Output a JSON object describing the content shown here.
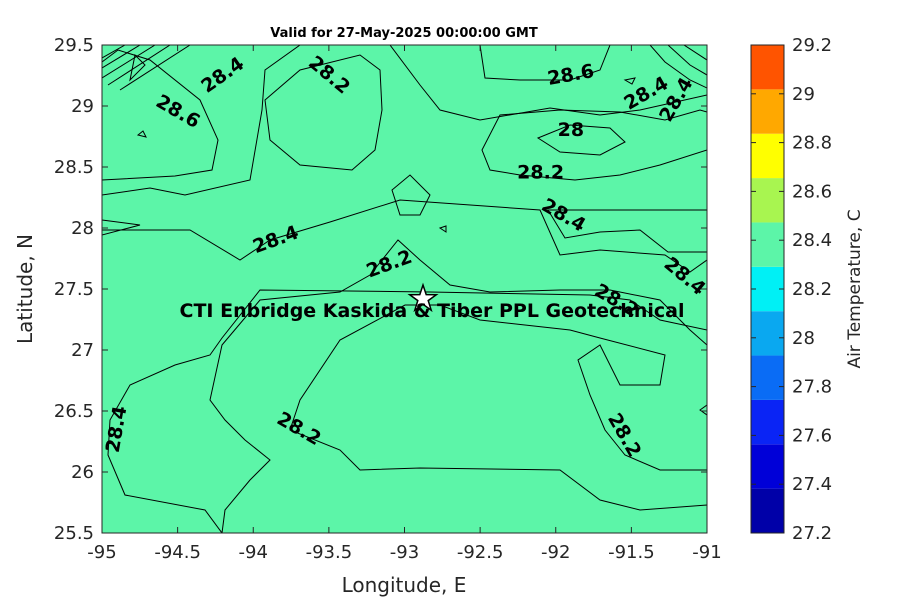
{
  "title": "Valid for 27-May-2025 00:00:00 GMT",
  "site_label": "CTI Enbridge  Kaskida & Tiber PPL Geotechnical",
  "colors": {
    "t27_2": "#0000a8",
    "t27_4": "#0000d8",
    "t27_6": "#0a24f5",
    "t27_8": "#0a6cf5",
    "t28_0": "#0aa8f0",
    "t28_2": "#00f0f5",
    "t28_4": "#5cf5a8",
    "t28_6": "#a8f550",
    "t28_8": "#ffff00",
    "t29_0": "#ffa800",
    "t29_2": "#ff5400",
    "t29_4": "#ff0000"
  },
  "chart_data": {
    "type": "contour_map",
    "title": "Valid for 27-May-2025 00:00:00 GMT",
    "xlabel": "Longitude, E",
    "ylabel": "Latitude, N",
    "xlim": [
      -95,
      -91
    ],
    "ylim": [
      25.5,
      29.5
    ],
    "x_ticks": [
      "-95",
      "-94.5",
      "-94",
      "-93.5",
      "-93",
      "-92.5",
      "-92",
      "-91.5",
      "-91"
    ],
    "y_ticks": [
      "29.5",
      "29",
      "28.5",
      "28",
      "27.5",
      "27",
      "26.5",
      "26",
      "25.5"
    ],
    "colorbar": {
      "label": "Air Temperature, C",
      "levels": [
        27.2,
        27.4,
        27.6,
        27.8,
        28.0,
        28.2,
        28.4,
        28.6,
        28.8,
        29.0,
        29.2
      ],
      "tick_labels": [
        "29.2",
        "29",
        "28.8",
        "28.6",
        "28.4",
        "28.2",
        "28",
        "27.8",
        "27.6",
        "27.4",
        "27.2"
      ]
    },
    "contour_labels": [
      {
        "text": "28.4",
        "lon": -94.2,
        "lat": 29.25
      },
      {
        "text": "28.2",
        "lon": -93.5,
        "lat": 29.25
      },
      {
        "text": "28.6",
        "lon": -94.5,
        "lat": 28.95
      },
      {
        "text": "28.6",
        "lon": -91.9,
        "lat": 29.25
      },
      {
        "text": "28.4",
        "lon": -91.4,
        "lat": 29.1
      },
      {
        "text": "28.4",
        "lon": -91.2,
        "lat": 29.05
      },
      {
        "text": "28",
        "lon": -91.9,
        "lat": 28.8
      },
      {
        "text": "28.2",
        "lon": -92.1,
        "lat": 28.45
      },
      {
        "text": "28.4",
        "lon": -91.95,
        "lat": 28.1
      },
      {
        "text": "28.4",
        "lon": -93.85,
        "lat": 27.9
      },
      {
        "text": "28.2",
        "lon": -93.1,
        "lat": 27.7
      },
      {
        "text": "28.4",
        "lon": -91.15,
        "lat": 27.6
      },
      {
        "text": "28.2",
        "lon": -91.6,
        "lat": 27.4
      },
      {
        "text": "28.4",
        "lon": -94.9,
        "lat": 26.35
      },
      {
        "text": "28.2",
        "lon": -93.7,
        "lat": 26.35
      },
      {
        "text": "28.2",
        "lon": -91.55,
        "lat": 26.3
      }
    ],
    "site": {
      "name": "CTI Enbridge  Kaskida & Tiber PPL Geotechnical",
      "lon": -92.88,
      "lat": 27.45
    }
  }
}
